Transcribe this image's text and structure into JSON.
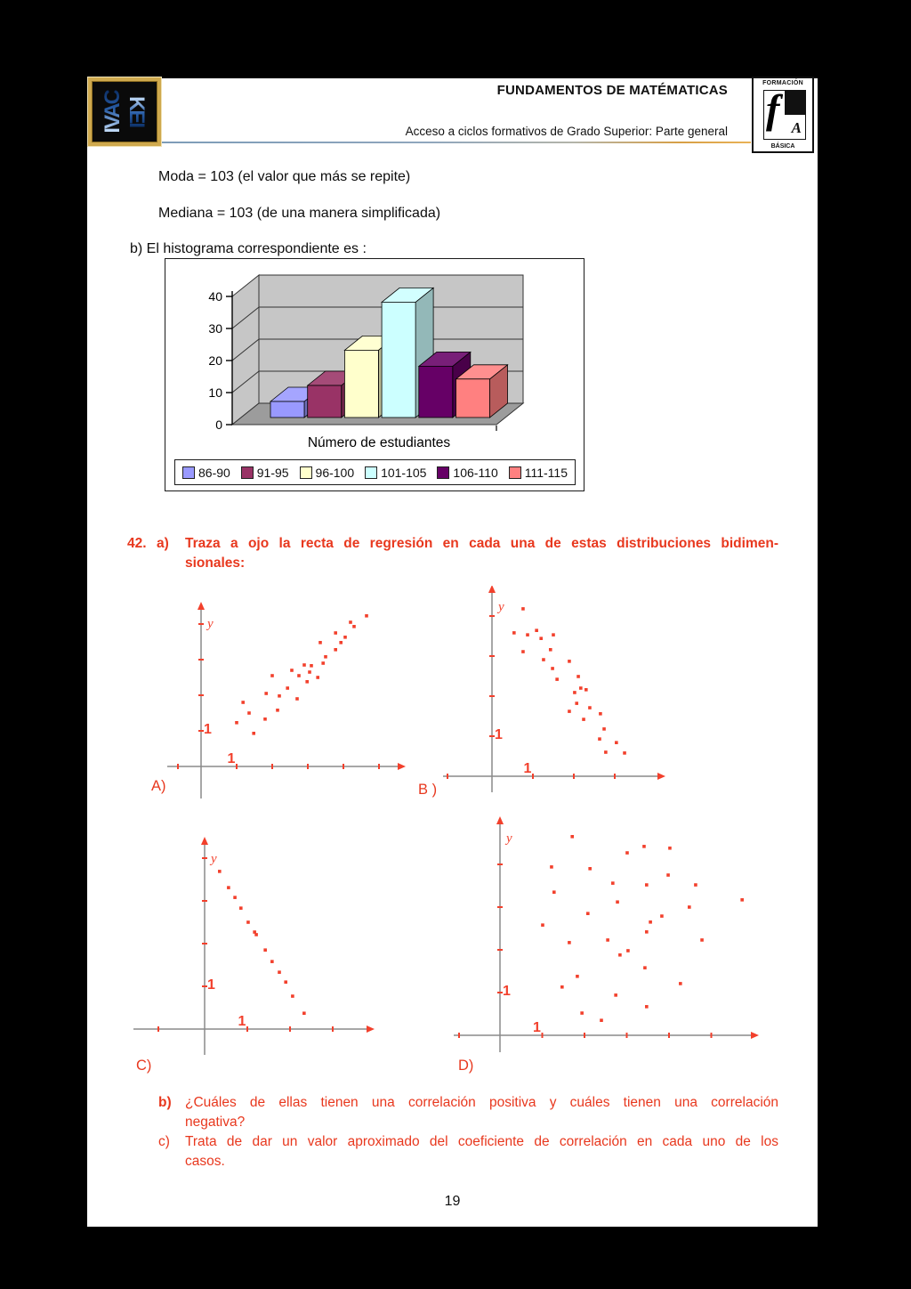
{
  "header": {
    "title": "FUNDAMENTOS DE MATÉMATICAS",
    "subtitle": "Acceso a ciclos formativos de Grado Superior: Parte general"
  },
  "logo_left": {
    "line1": "IVAC",
    "line2": "KEI"
  },
  "logo_right": {
    "top": "FORMACIÓN",
    "bottom": "BÁSICA",
    "letter_f": "f",
    "letter_a": "A"
  },
  "content": {
    "moda": "Moda = 103  (el valor que más se repite)",
    "mediana": "Mediana = 103 (de una manera simplificada)",
    "histogram_intro": "b) El histograma correspondiente es :"
  },
  "question": {
    "number": "42.",
    "a_label": "a)",
    "a_text_line1": "Traza a ojo la recta de regresión en cada una de estas distribuciones bidimen-",
    "a_text_line2": "sionales:",
    "b_label": "b)",
    "b_text_line1": "¿Cuáles de ellas tienen una correlación positiva y cuáles tienen una correlación",
    "b_text_line2": "negativa?",
    "c_label": "c)",
    "c_text_line1": "Trata de dar un valor aproximado del coeficiente de correlación en cada uno de los",
    "c_text_line2": "casos."
  },
  "footer": {
    "page_number": "19"
  },
  "colors": {
    "accent_red": "#e8381e",
    "point_red": "#f2402c",
    "axis_gray": "#8a8a8a",
    "wall_gray": "#c6c6c6",
    "floor_gray": "#9c9c9c",
    "series": [
      "#9999ff",
      "#993366",
      "#ffffcc",
      "#ccffff",
      "#660066",
      "#ff8080"
    ]
  },
  "chart_data": [
    {
      "type": "bar",
      "variant": "3d-column",
      "title": "",
      "xlabel": "Número de estudiantes",
      "ylabel": "",
      "categories": [
        "86-90",
        "91-95",
        "96-100",
        "101-105",
        "106-110",
        "111-115"
      ],
      "values": [
        5,
        10,
        21,
        36,
        16,
        12
      ],
      "ylim": [
        0,
        40
      ],
      "yticks": [
        0,
        10,
        20,
        30,
        40
      ],
      "grid": true,
      "legend_position": "bottom",
      "series_colors": [
        "#9999ff",
        "#993366",
        "#ffffcc",
        "#ccffff",
        "#660066",
        "#ff8080"
      ]
    },
    {
      "type": "scatter",
      "id": "A",
      "label": "A)",
      "correlation": "positive",
      "axis_label_y": "y",
      "x_tick_label": "1",
      "y_tick_label": "1",
      "points": [
        [
          1.0,
          1.23
        ],
        [
          1.18,
          1.8
        ],
        [
          1.35,
          1.5
        ],
        [
          1.48,
          0.93
        ],
        [
          1.8,
          1.33
        ],
        [
          1.83,
          2.05
        ],
        [
          2.0,
          2.55
        ],
        [
          2.15,
          1.58
        ],
        [
          2.2,
          1.98
        ],
        [
          2.43,
          2.2
        ],
        [
          2.55,
          2.7
        ],
        [
          2.7,
          1.9
        ],
        [
          2.75,
          2.55
        ],
        [
          2.9,
          2.85
        ],
        [
          2.98,
          2.38
        ],
        [
          3.05,
          2.65
        ],
        [
          3.1,
          2.83
        ],
        [
          3.28,
          2.5
        ],
        [
          3.35,
          3.48
        ],
        [
          3.43,
          2.9
        ],
        [
          3.5,
          3.08
        ],
        [
          3.78,
          3.75
        ],
        [
          3.78,
          3.28
        ],
        [
          3.93,
          3.48
        ],
        [
          4.05,
          3.63
        ],
        [
          4.2,
          4.05
        ],
        [
          4.3,
          3.93
        ],
        [
          4.65,
          4.23
        ]
      ]
    },
    {
      "type": "scatter",
      "id": "B",
      "label": "B )",
      "correlation": "negative",
      "axis_label_y": "y",
      "x_tick_label": "1",
      "y_tick_label": "1",
      "points": [
        [
          0.76,
          4.18
        ],
        [
          0.54,
          3.58
        ],
        [
          0.87,
          3.53
        ],
        [
          1.09,
          3.64
        ],
        [
          1.2,
          3.44
        ],
        [
          1.5,
          3.53
        ],
        [
          0.76,
          3.11
        ],
        [
          1.43,
          3.16
        ],
        [
          1.26,
          2.91
        ],
        [
          1.48,
          2.69
        ],
        [
          1.89,
          2.87
        ],
        [
          1.59,
          2.42
        ],
        [
          2.11,
          2.49
        ],
        [
          2.02,
          2.09
        ],
        [
          2.17,
          2.2
        ],
        [
          2.3,
          2.16
        ],
        [
          2.07,
          1.82
        ],
        [
          2.39,
          1.71
        ],
        [
          1.89,
          1.62
        ],
        [
          2.24,
          1.42
        ],
        [
          2.65,
          1.56
        ],
        [
          2.74,
          1.18
        ],
        [
          2.63,
          0.93
        ],
        [
          3.04,
          0.84
        ],
        [
          2.78,
          0.6
        ],
        [
          3.24,
          0.58
        ]
      ]
    },
    {
      "type": "scatter",
      "id": "C",
      "label": "C)",
      "correlation": "strong-negative",
      "axis_label_y": "y",
      "x_tick_label": "1",
      "y_tick_label": "1",
      "points": [
        [
          0.35,
          3.69
        ],
        [
          0.56,
          3.31
        ],
        [
          0.71,
          3.08
        ],
        [
          0.85,
          2.83
        ],
        [
          1.02,
          2.5
        ],
        [
          1.17,
          2.27
        ],
        [
          1.21,
          2.21
        ],
        [
          1.42,
          1.85
        ],
        [
          1.58,
          1.58
        ],
        [
          1.75,
          1.33
        ],
        [
          1.9,
          1.1
        ],
        [
          2.06,
          0.77
        ],
        [
          2.33,
          0.37
        ]
      ]
    },
    {
      "type": "scatter",
      "id": "D",
      "label": "D)",
      "correlation": "none",
      "axis_label_y": "y",
      "x_tick_label": "1",
      "y_tick_label": "1",
      "points": [
        [
          1.71,
          4.65
        ],
        [
          3.41,
          4.42
        ],
        [
          4.02,
          4.38
        ],
        [
          3.01,
          4.27
        ],
        [
          1.22,
          3.94
        ],
        [
          2.13,
          3.9
        ],
        [
          3.98,
          3.75
        ],
        [
          2.67,
          3.56
        ],
        [
          3.47,
          3.52
        ],
        [
          4.63,
          3.52
        ],
        [
          1.28,
          3.35
        ],
        [
          2.78,
          3.12
        ],
        [
          5.73,
          3.17
        ],
        [
          4.48,
          3.0
        ],
        [
          2.08,
          2.85
        ],
        [
          3.83,
          2.79
        ],
        [
          3.56,
          2.65
        ],
        [
          1.01,
          2.58
        ],
        [
          3.47,
          2.42
        ],
        [
          1.64,
          2.17
        ],
        [
          2.55,
          2.23
        ],
        [
          4.78,
          2.23
        ],
        [
          3.03,
          1.98
        ],
        [
          2.84,
          1.88
        ],
        [
          3.43,
          1.58
        ],
        [
          1.83,
          1.38
        ],
        [
          4.27,
          1.21
        ],
        [
          1.47,
          1.13
        ],
        [
          2.74,
          0.94
        ],
        [
          3.47,
          0.67
        ],
        [
          1.94,
          0.52
        ],
        [
          2.4,
          0.35
        ]
      ]
    }
  ]
}
